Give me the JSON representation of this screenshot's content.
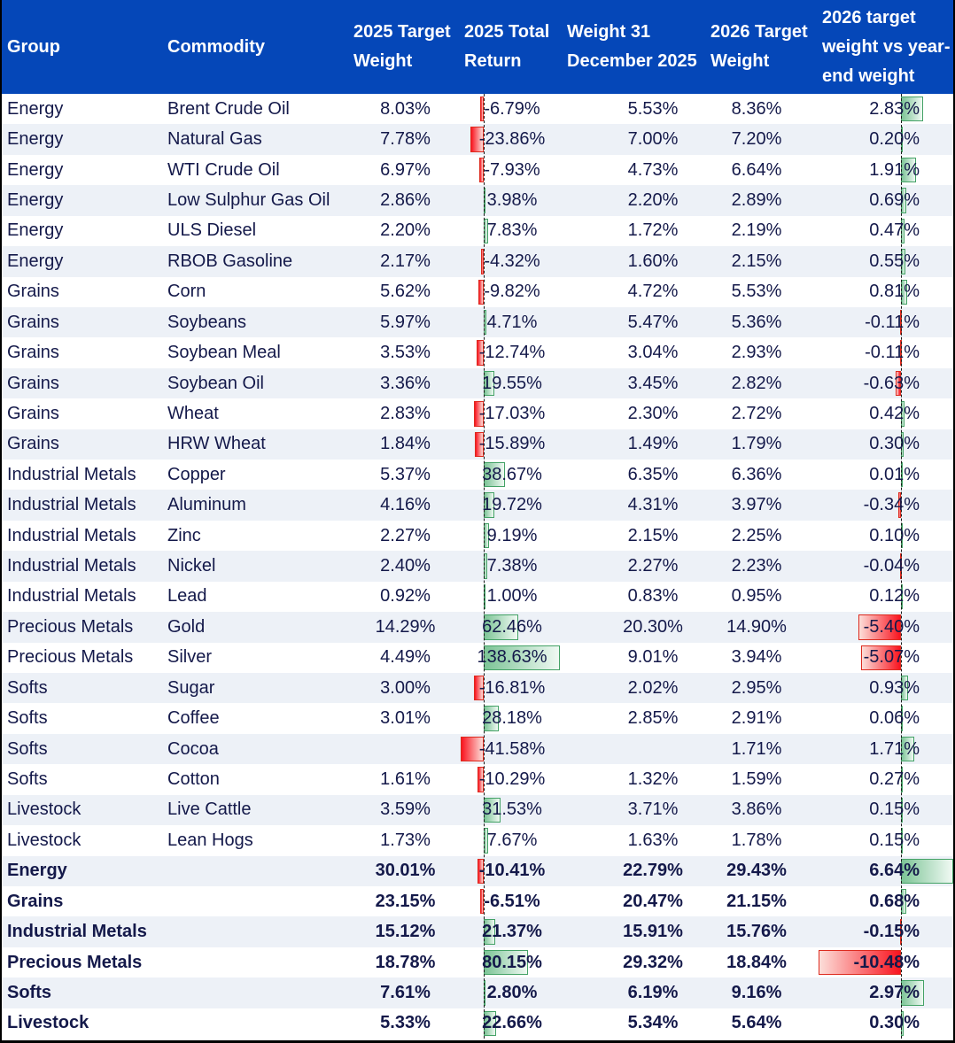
{
  "palette": {
    "header_bg": "#0547B8",
    "header_text": "#FFFFFF",
    "body_text": "#14194A",
    "row_bg": "#FFFFFF",
    "row_alt_bg": "#EDF1F7",
    "bar_green_border": "#44A266",
    "bar_green_solid": "#7CC496",
    "bar_green_pale": "#F0F9F3",
    "bar_red_border": "#DD2B1F",
    "bar_red_solid": "#F9141F",
    "bar_red_pale": "#FCDED9",
    "axis_line": "#1A1A1A",
    "outer_border": "#000000"
  },
  "header": {
    "columns": [
      {
        "label": "Group"
      },
      {
        "label": "Commodity"
      },
      {
        "label": "2025 Target Weight"
      },
      {
        "label": "2025 Total Return"
      },
      {
        "label": "Weight 31 December 2025"
      },
      {
        "label": "2026 Target Weight"
      },
      {
        "label": "2026 target weight vs year-end weight"
      }
    ]
  },
  "chart_data": {
    "type": "table",
    "title": "",
    "columns": [
      "Group",
      "Commodity",
      "2025 Target Weight",
      "2025 Total Return",
      "Weight 31 December 2025",
      "2026 Target Weight",
      "2026 target weight vs year-end weight"
    ],
    "databar_columns": {
      "return_2025": {
        "style": "excel-gradient-databar",
        "positive_color": "green",
        "negative_color": "red",
        "axis": "dashed vertical line near left of column"
      },
      "diff_2026": {
        "style": "excel-gradient-databar",
        "positive_color": "green",
        "negative_color": "red",
        "axis": "dashed vertical line near right of column"
      }
    },
    "rows": [
      {
        "group": "Energy",
        "commodity": "Brent Crude Oil",
        "target_2025": "8.03%",
        "return_2025": "-6.79%",
        "return_value": -6.79,
        "weight_dec_2025": "5.53%",
        "target_2026": "8.36%",
        "diff": "2.83%",
        "diff_value": 2.83,
        "summary": false
      },
      {
        "group": "Energy",
        "commodity": "Natural Gas",
        "target_2025": "7.78%",
        "return_2025": "-23.86%",
        "return_value": -23.86,
        "weight_dec_2025": "7.00%",
        "target_2026": "7.20%",
        "diff": "0.20%",
        "diff_value": 0.2,
        "summary": false
      },
      {
        "group": "Energy",
        "commodity": "WTI Crude Oil",
        "target_2025": "6.97%",
        "return_2025": "-7.93%",
        "return_value": -7.93,
        "weight_dec_2025": "4.73%",
        "target_2026": "6.64%",
        "diff": "1.91%",
        "diff_value": 1.91,
        "summary": false
      },
      {
        "group": "Energy",
        "commodity": "Low Sulphur Gas Oil",
        "target_2025": "2.86%",
        "return_2025": "3.98%",
        "return_value": 3.98,
        "weight_dec_2025": "2.20%",
        "target_2026": "2.89%",
        "diff": "0.69%",
        "diff_value": 0.69,
        "summary": false
      },
      {
        "group": "Energy",
        "commodity": "ULS Diesel",
        "target_2025": "2.20%",
        "return_2025": "7.83%",
        "return_value": 7.83,
        "weight_dec_2025": "1.72%",
        "target_2026": "2.19%",
        "diff": "0.47%",
        "diff_value": 0.47,
        "summary": false
      },
      {
        "group": "Energy",
        "commodity": "RBOB Gasoline",
        "target_2025": "2.17%",
        "return_2025": "-4.32%",
        "return_value": -4.32,
        "weight_dec_2025": "1.60%",
        "target_2026": "2.15%",
        "diff": "0.55%",
        "diff_value": 0.55,
        "summary": false
      },
      {
        "group": "Grains",
        "commodity": "Corn",
        "target_2025": "5.62%",
        "return_2025": "-9.82%",
        "return_value": -9.82,
        "weight_dec_2025": "4.72%",
        "target_2026": "5.53%",
        "diff": "0.81%",
        "diff_value": 0.81,
        "summary": false
      },
      {
        "group": "Grains",
        "commodity": "Soybeans",
        "target_2025": "5.97%",
        "return_2025": "4.71%",
        "return_value": 4.71,
        "weight_dec_2025": "5.47%",
        "target_2026": "5.36%",
        "diff": "-0.11%",
        "diff_value": -0.11,
        "summary": false
      },
      {
        "group": "Grains",
        "commodity": "Soybean Meal",
        "target_2025": "3.53%",
        "return_2025": "-12.74%",
        "return_value": -12.74,
        "weight_dec_2025": "3.04%",
        "target_2026": "2.93%",
        "diff": "-0.11%",
        "diff_value": -0.11,
        "summary": false
      },
      {
        "group": "Grains",
        "commodity": "Soybean Oil",
        "target_2025": "3.36%",
        "return_2025": "19.55%",
        "return_value": 19.55,
        "weight_dec_2025": "3.45%",
        "target_2026": "2.82%",
        "diff": "-0.63%",
        "diff_value": -0.63,
        "summary": false
      },
      {
        "group": "Grains",
        "commodity": "Wheat",
        "target_2025": "2.83%",
        "return_2025": "-17.03%",
        "return_value": -17.03,
        "weight_dec_2025": "2.30%",
        "target_2026": "2.72%",
        "diff": "0.42%",
        "diff_value": 0.42,
        "summary": false
      },
      {
        "group": "Grains",
        "commodity": "HRW Wheat",
        "target_2025": "1.84%",
        "return_2025": "-15.89%",
        "return_value": -15.89,
        "weight_dec_2025": "1.49%",
        "target_2026": "1.79%",
        "diff": "0.30%",
        "diff_value": 0.3,
        "summary": false
      },
      {
        "group": "Industrial Metals",
        "commodity": "Copper",
        "target_2025": "5.37%",
        "return_2025": "38.67%",
        "return_value": 38.67,
        "weight_dec_2025": "6.35%",
        "target_2026": "6.36%",
        "diff": "0.01%",
        "diff_value": 0.01,
        "summary": false
      },
      {
        "group": "Industrial Metals",
        "commodity": "Aluminum",
        "target_2025": "4.16%",
        "return_2025": "19.72%",
        "return_value": 19.72,
        "weight_dec_2025": "4.31%",
        "target_2026": "3.97%",
        "diff": "-0.34%",
        "diff_value": -0.34,
        "summary": false
      },
      {
        "group": "Industrial Metals",
        "commodity": "Zinc",
        "target_2025": "2.27%",
        "return_2025": "9.19%",
        "return_value": 9.19,
        "weight_dec_2025": "2.15%",
        "target_2026": "2.25%",
        "diff": "0.10%",
        "diff_value": 0.1,
        "summary": false
      },
      {
        "group": "Industrial Metals",
        "commodity": "Nickel",
        "target_2025": "2.40%",
        "return_2025": "7.38%",
        "return_value": 7.38,
        "weight_dec_2025": "2.27%",
        "target_2026": "2.23%",
        "diff": "-0.04%",
        "diff_value": -0.04,
        "summary": false
      },
      {
        "group": "Industrial Metals",
        "commodity": "Lead",
        "target_2025": "0.92%",
        "return_2025": "1.00%",
        "return_value": 1.0,
        "weight_dec_2025": "0.83%",
        "target_2026": "0.95%",
        "diff": "0.12%",
        "diff_value": 0.12,
        "summary": false
      },
      {
        "group": "Precious Metals",
        "commodity": "Gold",
        "target_2025": "14.29%",
        "return_2025": "62.46%",
        "return_value": 62.46,
        "weight_dec_2025": "20.30%",
        "target_2026": "14.90%",
        "diff": "-5.40%",
        "diff_value": -5.4,
        "summary": false
      },
      {
        "group": "Precious Metals",
        "commodity": "Silver",
        "target_2025": "4.49%",
        "return_2025": "138.63%",
        "return_value": 138.63,
        "weight_dec_2025": "9.01%",
        "target_2026": "3.94%",
        "diff": "-5.07%",
        "diff_value": -5.07,
        "summary": false
      },
      {
        "group": "Softs",
        "commodity": "Sugar",
        "target_2025": "3.00%",
        "return_2025": "-16.81%",
        "return_value": -16.81,
        "weight_dec_2025": "2.02%",
        "target_2026": "2.95%",
        "diff": "0.93%",
        "diff_value": 0.93,
        "summary": false
      },
      {
        "group": "Softs",
        "commodity": "Coffee",
        "target_2025": "3.01%",
        "return_2025": "28.18%",
        "return_value": 28.18,
        "weight_dec_2025": "2.85%",
        "target_2026": "2.91%",
        "diff": "0.06%",
        "diff_value": 0.06,
        "summary": false
      },
      {
        "group": "Softs",
        "commodity": "Cocoa",
        "target_2025": "",
        "return_2025": "-41.58%",
        "return_value": -41.58,
        "weight_dec_2025": "",
        "target_2026": "1.71%",
        "diff": "1.71%",
        "diff_value": 1.71,
        "summary": false
      },
      {
        "group": "Softs",
        "commodity": "Cotton",
        "target_2025": "1.61%",
        "return_2025": "-10.29%",
        "return_value": -10.29,
        "weight_dec_2025": "1.32%",
        "target_2026": "1.59%",
        "diff": "0.27%",
        "diff_value": 0.27,
        "summary": false
      },
      {
        "group": "Livestock",
        "commodity": "Live Cattle",
        "target_2025": "3.59%",
        "return_2025": "31.53%",
        "return_value": 31.53,
        "weight_dec_2025": "3.71%",
        "target_2026": "3.86%",
        "diff": "0.15%",
        "diff_value": 0.15,
        "summary": false
      },
      {
        "group": "Livestock",
        "commodity": "Lean Hogs",
        "target_2025": "1.73%",
        "return_2025": "7.67%",
        "return_value": 7.67,
        "weight_dec_2025": "1.63%",
        "target_2026": "1.78%",
        "diff": "0.15%",
        "diff_value": 0.15,
        "summary": false
      },
      {
        "group": "Energy",
        "commodity": "",
        "target_2025": "30.01%",
        "return_2025": "-10.41%",
        "return_value": -10.41,
        "weight_dec_2025": "22.79%",
        "target_2026": "29.43%",
        "diff": "6.64%",
        "diff_value": 6.64,
        "summary": true
      },
      {
        "group": "Grains",
        "commodity": "",
        "target_2025": "23.15%",
        "return_2025": "-6.51%",
        "return_value": -6.51,
        "weight_dec_2025": "20.47%",
        "target_2026": "21.15%",
        "diff": "0.68%",
        "diff_value": 0.68,
        "summary": true
      },
      {
        "group": "Industrial Metals",
        "commodity": "",
        "target_2025": "15.12%",
        "return_2025": "21.37%",
        "return_value": 21.37,
        "weight_dec_2025": "15.91%",
        "target_2026": "15.76%",
        "diff": "-0.15%",
        "diff_value": -0.15,
        "summary": true
      },
      {
        "group": "Precious Metals",
        "commodity": "",
        "target_2025": "18.78%",
        "return_2025": "80.15%",
        "return_value": 80.15,
        "weight_dec_2025": "29.32%",
        "target_2026": "18.84%",
        "diff": "-10.48%",
        "diff_value": -10.48,
        "summary": true
      },
      {
        "group": "Softs",
        "commodity": "",
        "target_2025": "7.61%",
        "return_2025": "2.80%",
        "return_value": 2.8,
        "weight_dec_2025": "6.19%",
        "target_2026": "9.16%",
        "diff": "2.97%",
        "diff_value": 2.97,
        "summary": true
      },
      {
        "group": "Livestock",
        "commodity": "",
        "target_2025": "5.33%",
        "return_2025": "22.66%",
        "return_value": 22.66,
        "weight_dec_2025": "5.34%",
        "target_2026": "5.64%",
        "diff": "0.30%",
        "diff_value": 0.3,
        "summary": true
      }
    ]
  }
}
